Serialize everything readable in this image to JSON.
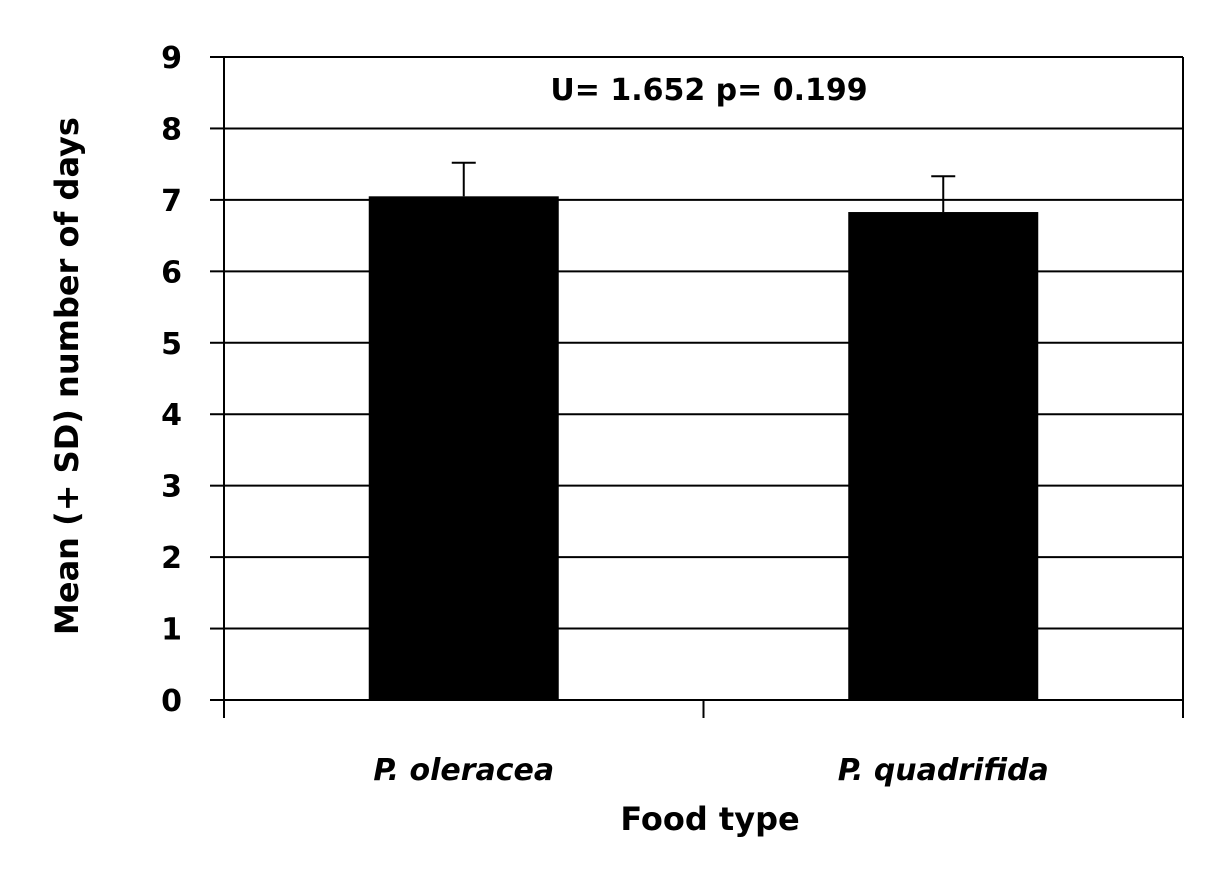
{
  "chart_data": {
    "type": "bar",
    "categories": [
      "P. oleracea",
      "P. quadrifida"
    ],
    "values": [
      7.05,
      6.83
    ],
    "error_plus": [
      0.47,
      0.5
    ],
    "xlabel": "Food type",
    "ylabel": "Mean (+ SD) number of days",
    "ylim": [
      0,
      9
    ],
    "yticks": [
      "0",
      "1",
      "2",
      "3",
      "4",
      "5",
      "6",
      "7",
      "8",
      "9"
    ],
    "annotation": "U= 1.652 p= 0.199",
    "grid": true,
    "bar_color": "#000000"
  }
}
